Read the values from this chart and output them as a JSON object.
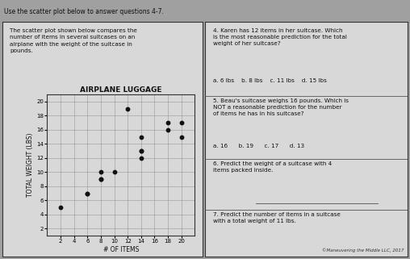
{
  "title": "AIRPLANE LUGGAGE",
  "xlabel": "# OF ITEMS",
  "ylabel": "TOTAL WEIGHT (LBS)",
  "scatter_points": [
    [
      2,
      5
    ],
    [
      6,
      7
    ],
    [
      6,
      7
    ],
    [
      8,
      9
    ],
    [
      8,
      9
    ],
    [
      8,
      10
    ],
    [
      10,
      10
    ],
    [
      12,
      19
    ],
    [
      14,
      15
    ],
    [
      14,
      13
    ],
    [
      14,
      12
    ],
    [
      14,
      13
    ],
    [
      18,
      17
    ],
    [
      18,
      16
    ],
    [
      20,
      17
    ],
    [
      20,
      15
    ]
  ],
  "xlim": [
    0,
    22
  ],
  "ylim": [
    1,
    21
  ],
  "xticks": [
    2,
    4,
    6,
    8,
    10,
    12,
    14,
    16,
    18,
    20
  ],
  "yticks": [
    2,
    4,
    6,
    8,
    10,
    12,
    14,
    16,
    18,
    20
  ],
  "dot_color": "#111111",
  "dot_size": 10,
  "grid_color": "#888888",
  "plot_bg": "#d8d8d8",
  "panel_bg": "#d8d8d8",
  "outer_bg": "#a0a0a0",
  "text_color": "#111111",
  "title_fontsize": 6.5,
  "label_fontsize": 5.5,
  "tick_fontsize": 5,
  "header_text": "Use the scatter plot below to answer questions 4-7.",
  "left_text": "The scatter plot shown below compares the\nnumber of items in several suitcases on an\nairplane with the weight of the suitcase in\npounds.",
  "q4_text": "4. Karen has 12 items in her suitcase. Which\nis the most reasonable prediction for the total\nweight of her suitcase?",
  "q4_answers": "a. 6 lbs    b. 8 lbs    c. 11 lbs    d. 15 lbs",
  "q5_text": "5. Beau's suitcase weighs 16 pounds. Which is\nNOT a reasonable prediction for the number\nof items he has in his suitcase?",
  "q5_answers": "a. 16      b. 19      c. 17      d. 13",
  "q6_text": "6. Predict the weight of a suitcase with 4\nitems packed inside.",
  "q7_text": "7. Predict the number of items in a suitcase\nwith a total weight of 11 lbs.",
  "copyright": "©Maneuvering the Middle LLC, 2017"
}
